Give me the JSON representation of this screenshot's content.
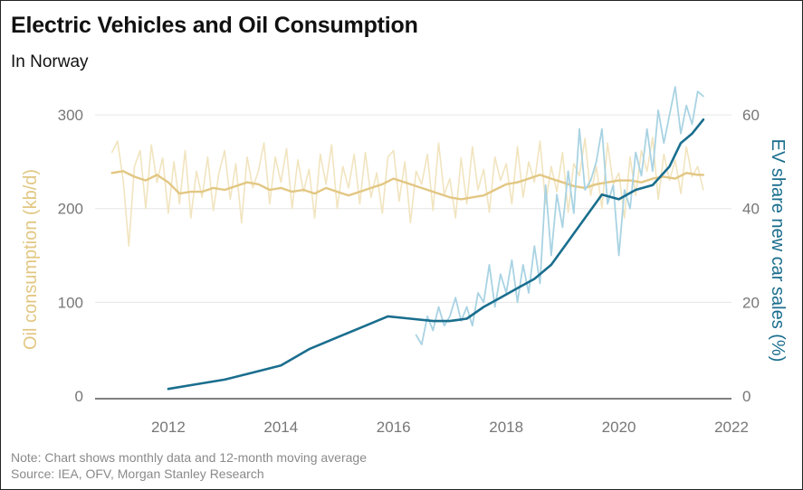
{
  "title": "Electric Vehicles and Oil Consumption",
  "subtitle": "In Norway",
  "note": "Note: Chart shows monthly data and 12-month moving average",
  "source": "Source: IEA, OFV, Morgan Stanley Research",
  "colors": {
    "oil_monthly": "#f1e4bf",
    "oil_ma": "#e2c783",
    "ev_monthly": "#a9d3e3",
    "ev_ma": "#1a6e8e",
    "left_axis_title": "#e2c783",
    "right_axis_title": "#1a6e8e",
    "tick_text": "#777777",
    "grid": "#e6e6e6",
    "baseline": "#555555"
  },
  "chart_data": {
    "type": "line",
    "title": "Electric Vehicles and Oil Consumption",
    "subtitle": "In Norway",
    "x_ticks": [
      "2012",
      "2014",
      "2016",
      "2018",
      "2020",
      "2022"
    ],
    "xlim": [
      2010.7,
      2022.0
    ],
    "y_left": {
      "label": "Oil consumption (kb/d)",
      "ticks": [
        "0",
        "100",
        "200",
        "300"
      ],
      "lim": [
        0,
        330
      ]
    },
    "y_right": {
      "label": "EV share new car sales (%)",
      "ticks": [
        "0",
        "20",
        "40",
        "60"
      ],
      "lim": [
        0,
        66
      ]
    },
    "grid": "horizontal",
    "series": [
      {
        "axis": "left",
        "x": [
          2011.0,
          2011.1,
          2011.2,
          2011.3,
          2011.4,
          2011.5,
          2011.6,
          2011.7,
          2011.8,
          2011.9,
          2012.0,
          2012.1,
          2012.2,
          2012.3,
          2012.4,
          2012.5,
          2012.6,
          2012.7,
          2012.8,
          2012.9,
          2013.0,
          2013.1,
          2013.2,
          2013.3,
          2013.4,
          2013.5,
          2013.6,
          2013.7,
          2013.8,
          2013.9,
          2014.0,
          2014.1,
          2014.2,
          2014.3,
          2014.4,
          2014.5,
          2014.6,
          2014.7,
          2014.8,
          2014.9,
          2015.0,
          2015.1,
          2015.2,
          2015.3,
          2015.4,
          2015.5,
          2015.6,
          2015.7,
          2015.8,
          2015.9,
          2016.0,
          2016.1,
          2016.2,
          2016.3,
          2016.4,
          2016.5,
          2016.6,
          2016.7,
          2016.8,
          2016.9,
          2017.0,
          2017.1,
          2017.2,
          2017.3,
          2017.4,
          2017.5,
          2017.6,
          2017.7,
          2017.8,
          2017.9,
          2018.0,
          2018.1,
          2018.2,
          2018.3,
          2018.4,
          2018.5,
          2018.6,
          2018.7,
          2018.8,
          2018.9,
          2019.0,
          2019.1,
          2019.2,
          2019.3,
          2019.4,
          2019.5,
          2019.6,
          2019.7,
          2019.8,
          2019.9,
          2020.0,
          2020.1,
          2020.2,
          2020.3,
          2020.4,
          2020.5,
          2020.6,
          2020.7,
          2020.8,
          2020.9,
          2021.0,
          2021.1,
          2021.2,
          2021.3,
          2021.4,
          2021.5
        ],
        "values": [
          260,
          272,
          230,
          160,
          245,
          262,
          200,
          268,
          228,
          254,
          195,
          250,
          205,
          262,
          190,
          240,
          212,
          255,
          198,
          238,
          262,
          210,
          248,
          185,
          255,
          222,
          240,
          270,
          205,
          255,
          228,
          264,
          200,
          252,
          218,
          242,
          190,
          258,
          226,
          268,
          200,
          245,
          222,
          258,
          205,
          260,
          212,
          238,
          195,
          255,
          262,
          208,
          250,
          185,
          240,
          226,
          258,
          198,
          270,
          215,
          232,
          190,
          254,
          205,
          266,
          220,
          242,
          196,
          255,
          230,
          248,
          205,
          266,
          212,
          250,
          228,
          272,
          205,
          245,
          218,
          260,
          196,
          248,
          235,
          275,
          214,
          245,
          200,
          270,
          226,
          238,
          190,
          255,
          214,
          262,
          240,
          276,
          210,
          258,
          230,
          252,
          216,
          266,
          234,
          245,
          220
        ]
      },
      {
        "axis": "left",
        "x": [
          2011.0,
          2011.2,
          2011.4,
          2011.6,
          2011.8,
          2012.0,
          2012.2,
          2012.4,
          2012.6,
          2012.8,
          2013.0,
          2013.2,
          2013.4,
          2013.6,
          2013.8,
          2014.0,
          2014.2,
          2014.4,
          2014.6,
          2014.8,
          2015.0,
          2015.2,
          2015.4,
          2015.6,
          2015.8,
          2016.0,
          2016.2,
          2016.4,
          2016.6,
          2016.8,
          2017.0,
          2017.2,
          2017.4,
          2017.6,
          2017.8,
          2018.0,
          2018.2,
          2018.4,
          2018.6,
          2018.8,
          2019.0,
          2019.2,
          2019.4,
          2019.6,
          2019.8,
          2020.0,
          2020.2,
          2020.4,
          2020.6,
          2020.8,
          2021.0,
          2021.2,
          2021.4,
          2021.5
        ],
        "values": [
          238,
          240,
          234,
          230,
          236,
          228,
          216,
          218,
          218,
          222,
          220,
          224,
          228,
          226,
          220,
          222,
          218,
          220,
          216,
          222,
          218,
          214,
          218,
          222,
          226,
          232,
          228,
          224,
          220,
          216,
          212,
          210,
          212,
          214,
          220,
          226,
          228,
          232,
          236,
          232,
          228,
          224,
          222,
          226,
          228,
          230,
          230,
          228,
          232,
          234,
          232,
          238,
          236,
          236
        ]
      },
      {
        "axis": "right",
        "x": [
          2016.4,
          2016.5,
          2016.6,
          2016.7,
          2016.8,
          2016.9,
          2017.0,
          2017.1,
          2017.2,
          2017.3,
          2017.4,
          2017.5,
          2017.6,
          2017.7,
          2017.8,
          2017.9,
          2018.0,
          2018.1,
          2018.2,
          2018.3,
          2018.4,
          2018.5,
          2018.6,
          2018.7,
          2018.8,
          2018.9,
          2019.0,
          2019.1,
          2019.2,
          2019.3,
          2019.4,
          2019.5,
          2019.6,
          2019.7,
          2019.8,
          2019.9,
          2020.0,
          2020.1,
          2020.2,
          2020.3,
          2020.4,
          2020.5,
          2020.6,
          2020.7,
          2020.8,
          2020.9,
          2021.0,
          2021.1,
          2021.2,
          2021.3,
          2021.4,
          2021.5
        ],
        "values": [
          13,
          11,
          17,
          14,
          19,
          15,
          17,
          21,
          16,
          19,
          15,
          22,
          20,
          28,
          19,
          26,
          22,
          29,
          20,
          28,
          22,
          32,
          24,
          45,
          30,
          43,
          36,
          48,
          39,
          57,
          44,
          46,
          50,
          57,
          41,
          45,
          30,
          44,
          40,
          52,
          47,
          57,
          48,
          61,
          54,
          60,
          66,
          56,
          62,
          58,
          65,
          64
        ]
      },
      {
        "axis": "right",
        "x": [
          2012.0,
          2012.5,
          2013.0,
          2013.5,
          2014.0,
          2014.5,
          2015.0,
          2015.5,
          2015.9,
          2016.3,
          2016.7,
          2017.0,
          2017.3,
          2017.6,
          2017.9,
          2018.2,
          2018.5,
          2018.8,
          2019.1,
          2019.4,
          2019.7,
          2020.0,
          2020.3,
          2020.6,
          2020.9,
          2021.1,
          2021.3,
          2021.5
        ],
        "values": [
          1.5,
          2.5,
          3.5,
          5,
          6.5,
          10,
          12.5,
          15,
          17,
          16.5,
          16,
          16,
          16.5,
          19,
          21,
          23,
          25,
          28,
          33,
          38,
          43,
          42,
          44,
          45,
          49,
          54,
          56,
          59
        ]
      }
    ]
  }
}
